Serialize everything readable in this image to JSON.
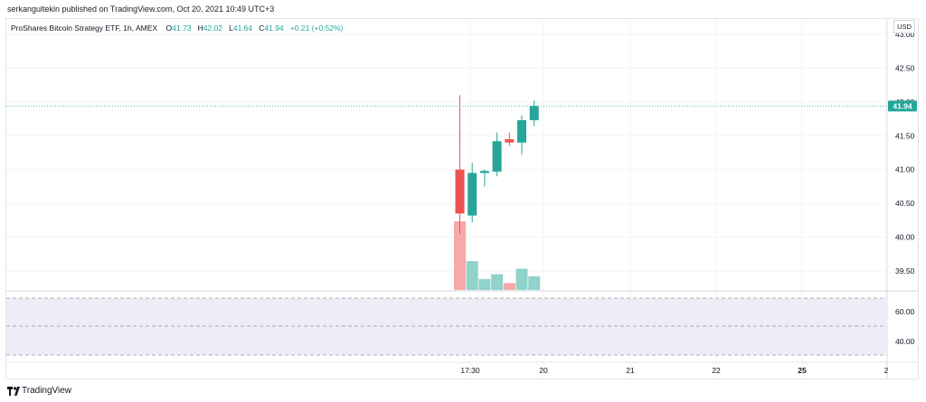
{
  "published_by": "serkangultekin published on TradingView.com, Oct 20, 2021 10:49 UTC+3",
  "legend": {
    "symbol": "ProShares Bitcoin Strategy ETF, 1h, AMEX",
    "open_label": "O",
    "open": "41.73",
    "high_label": "H",
    "high": "42.02",
    "low_label": "L",
    "low": "41.64",
    "close_label": "C",
    "close": "41.94",
    "change": "+0.21 (+0.52%)"
  },
  "currency": "USD",
  "brand": "TradingView",
  "colors": {
    "up": "#26a69a",
    "down": "#ef5350",
    "up_vol": "#8fd3cb",
    "down_vol": "#f7a9a7",
    "rsi_band": "#efecf8"
  },
  "chart_data": {
    "type": "candlestick",
    "price_axis_ticks": [
      39.5,
      40.0,
      40.5,
      41.0,
      41.5,
      42.0,
      42.5,
      43.0
    ],
    "price_axis_labels": [
      "39.50",
      "40.00",
      "40.50",
      "41.00",
      "41.50",
      "42.00",
      "42.50",
      "43.00"
    ],
    "ylim": [
      39.3,
      43.1
    ],
    "last_price": 41.94,
    "last_price_label": "41.94",
    "time_axis_labels": [
      "17:30",
      "20",
      "21",
      "22",
      "25",
      "2"
    ],
    "time_axis_bold": [
      false,
      false,
      false,
      false,
      true,
      false
    ],
    "candles": [
      {
        "o": 41.0,
        "h": 42.1,
        "l": 40.05,
        "c": 40.35,
        "vol": 100
      },
      {
        "o": 40.32,
        "h": 41.1,
        "l": 40.22,
        "c": 40.95,
        "vol": 42
      },
      {
        "o": 40.95,
        "h": 41.0,
        "l": 40.75,
        "c": 40.98,
        "vol": 16
      },
      {
        "o": 40.97,
        "h": 41.55,
        "l": 40.9,
        "c": 41.42,
        "vol": 23
      },
      {
        "o": 41.45,
        "h": 41.55,
        "l": 41.35,
        "c": 41.4,
        "vol": 10
      },
      {
        "o": 41.4,
        "h": 41.8,
        "l": 41.22,
        "c": 41.73,
        "vol": 31
      },
      {
        "o": 41.73,
        "h": 42.02,
        "l": 41.64,
        "c": 41.94,
        "vol": 20
      }
    ],
    "rsi_axis_labels": [
      "60.00",
      "40.00"
    ],
    "rsi_ticks": [
      60,
      40
    ]
  }
}
